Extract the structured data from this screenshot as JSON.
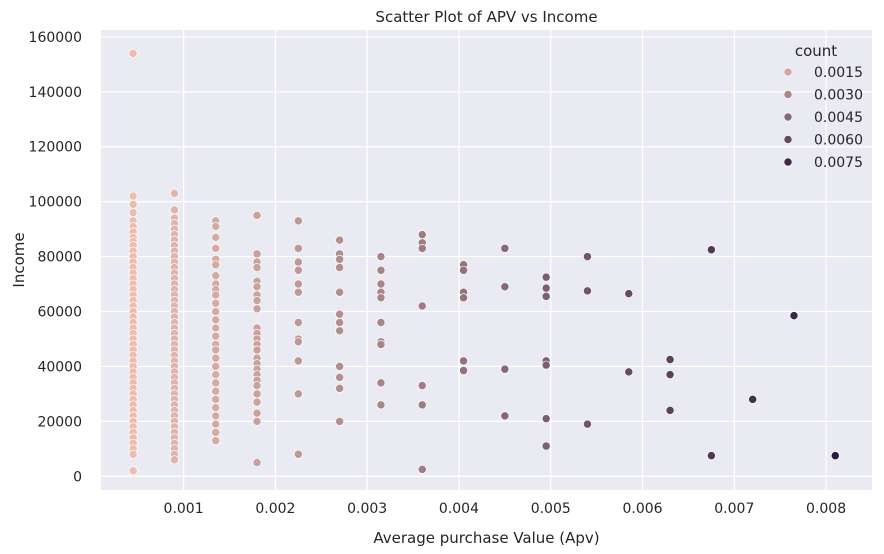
{
  "chart_data": {
    "type": "scatter",
    "title": "Scatter Plot of APV vs Income",
    "xlabel": "Average purchase Value (Apv)",
    "ylabel": "Income",
    "xlim": [
      0.0001,
      0.0085
    ],
    "ylim": [
      -5000,
      162500
    ],
    "xticks": [
      0.001,
      0.002,
      0.003,
      0.004,
      0.005,
      0.006,
      0.007,
      0.008
    ],
    "xtick_labels": [
      "0.001",
      "0.002",
      "0.003",
      "0.004",
      "0.005",
      "0.006",
      "0.007",
      "0.008"
    ],
    "yticks": [
      0,
      20000,
      40000,
      60000,
      80000,
      100000,
      120000,
      140000,
      160000
    ],
    "ytick_labels": [
      "0",
      "20000",
      "40000",
      "60000",
      "80000",
      "100000",
      "120000",
      "140000",
      "160000"
    ],
    "grid": true,
    "legend": {
      "title": "count",
      "placement": "top-right",
      "entries": [
        {
          "label": "0.0015",
          "value": 0.0015
        },
        {
          "label": "0.0030",
          "value": 0.003
        },
        {
          "label": "0.0045",
          "value": 0.0045
        },
        {
          "label": "0.0060",
          "value": 0.006
        },
        {
          "label": "0.0075",
          "value": 0.0075
        }
      ]
    },
    "hue_range": [
      0.00045,
      0.0081
    ],
    "columns": [
      {
        "x": 0.00045,
        "incomes": [
          154000,
          102000,
          99000,
          96000,
          93000,
          91000,
          89000,
          87000,
          85500,
          84000,
          82000,
          80000,
          78000,
          76000,
          74000,
          72000,
          70000,
          68000,
          66000,
          64000,
          62000,
          60000,
          58000,
          56000,
          54000,
          52000,
          50000,
          48000,
          46000,
          44000,
          42000,
          40000,
          38000,
          36000,
          34000,
          32000,
          30000,
          28000,
          26000,
          24000,
          22000,
          20000,
          18000,
          16000,
          14000,
          12000,
          10000,
          8000,
          2000
        ]
      },
      {
        "x": 0.0009,
        "incomes": [
          103000,
          97000,
          94000,
          92000,
          90000,
          88000,
          86000,
          84000,
          82000,
          80000,
          78000,
          76000,
          74000,
          72000,
          70000,
          68000,
          66000,
          64000,
          62000,
          60000,
          58000,
          56000,
          54000,
          52000,
          50000,
          48000,
          46000,
          44000,
          42000,
          40000,
          38000,
          36000,
          34000,
          32000,
          30000,
          28000,
          26000,
          24000,
          22000,
          20000,
          18000,
          16000,
          14000,
          12000,
          10000,
          8000,
          6000
        ]
      },
      {
        "x": 0.00135,
        "incomes": [
          93000,
          91000,
          87000,
          83000,
          79000,
          77000,
          73000,
          70000,
          68000,
          66000,
          63000,
          60000,
          57000,
          54000,
          51000,
          48000,
          46000,
          43000,
          40000,
          37000,
          34000,
          31000,
          28000,
          25000,
          22000,
          19000,
          16000,
          13000
        ]
      },
      {
        "x": 0.0018,
        "incomes": [
          95000,
          81000,
          78000,
          76000,
          71000,
          69000,
          66000,
          64000,
          61000,
          54000,
          52000,
          50000,
          48000,
          46000,
          43000,
          41000,
          39000,
          37000,
          35000,
          33000,
          30000,
          27000,
          23000,
          20000,
          5000
        ]
      },
      {
        "x": 0.00225,
        "incomes": [
          93000,
          83000,
          78000,
          75000,
          70000,
          67000,
          56000,
          50000,
          49000,
          42000,
          30000,
          8000
        ]
      },
      {
        "x": 0.0027,
        "incomes": [
          86000,
          81000,
          79000,
          76000,
          67000,
          59000,
          56000,
          53000,
          40000,
          36000,
          32000,
          20000
        ]
      },
      {
        "x": 0.00315,
        "incomes": [
          80000,
          75000,
          70000,
          67000,
          65000,
          56000,
          49000,
          48000,
          34000,
          26000
        ]
      },
      {
        "x": 0.0036,
        "incomes": [
          88000,
          85000,
          83000,
          62000,
          33000,
          26000,
          2500
        ]
      },
      {
        "x": 0.00405,
        "incomes": [
          77000,
          75000,
          67000,
          65000,
          42000,
          38500
        ]
      },
      {
        "x": 0.0045,
        "incomes": [
          83000,
          69000,
          39000,
          22000
        ]
      },
      {
        "x": 0.00495,
        "incomes": [
          72500,
          68500,
          65500,
          42000,
          40500,
          21000,
          11000
        ]
      },
      {
        "x": 0.0054,
        "incomes": [
          80000,
          67500,
          19000
        ]
      },
      {
        "x": 0.00585,
        "incomes": [
          66500,
          38000
        ]
      },
      {
        "x": 0.0063,
        "incomes": [
          42500,
          37000,
          24000
        ]
      },
      {
        "x": 0.00675,
        "incomes": [
          82500,
          7500
        ]
      },
      {
        "x": 0.0072,
        "incomes": [
          28000
        ]
      },
      {
        "x": 0.00765,
        "incomes": [
          58500
        ]
      },
      {
        "x": 0.0081,
        "incomes": [
          7500
        ]
      }
    ],
    "colors": {
      "background": "#eaeaf2",
      "grid": "#ffffff",
      "palette_light": "#ebbdb1",
      "palette_dark": "#2d1e3e"
    }
  }
}
